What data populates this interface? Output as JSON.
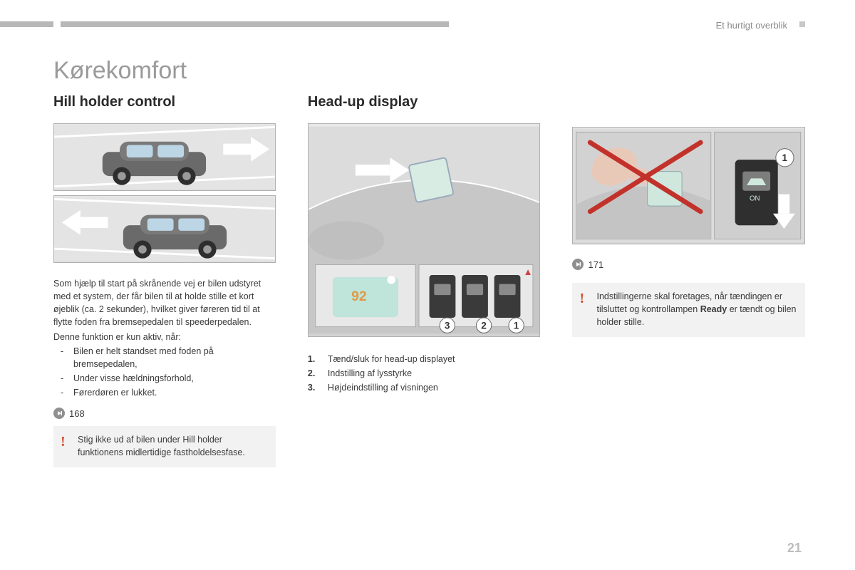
{
  "header": {
    "section_label": "Et hurtigt overblik",
    "bar_color": "#b8b8b8"
  },
  "page": {
    "title": "Kørekomfort",
    "number": "21"
  },
  "col1": {
    "heading": "Hill holder control",
    "para": "Som hjælp til start på skrånende vej er bilen udstyret med et system, der får bilen til at holde stille et kort øjeblik (ca. 2 sekunder), hvilket giver føreren tid til at flytte foden fra bremsepedalen til speederpedalen.",
    "active_intro": "Denne funktion er kun aktiv, når:",
    "bullets": [
      "Bilen er helt standset med foden på bremsepedalen,",
      "Under visse hældningsforhold,",
      "Førerdøren er lukket."
    ],
    "ref": "168",
    "warning": "Stig ikke ud af bilen under Hill holder funktionens midlertidige fastholdelsesfase."
  },
  "col2": {
    "heading": "Head-up display",
    "list": [
      "Tænd/sluk for head-up displayet",
      "Indstilling af lysstyrke",
      "Højdeindstilling af visningen"
    ]
  },
  "col3": {
    "ref": "171",
    "warning_pre": "Indstillingerne skal foretages, når tændingen er tilsluttet og kontrollampen ",
    "warning_bold": "Ready",
    "warning_post": " er tændt og bilen holder stille."
  }
}
